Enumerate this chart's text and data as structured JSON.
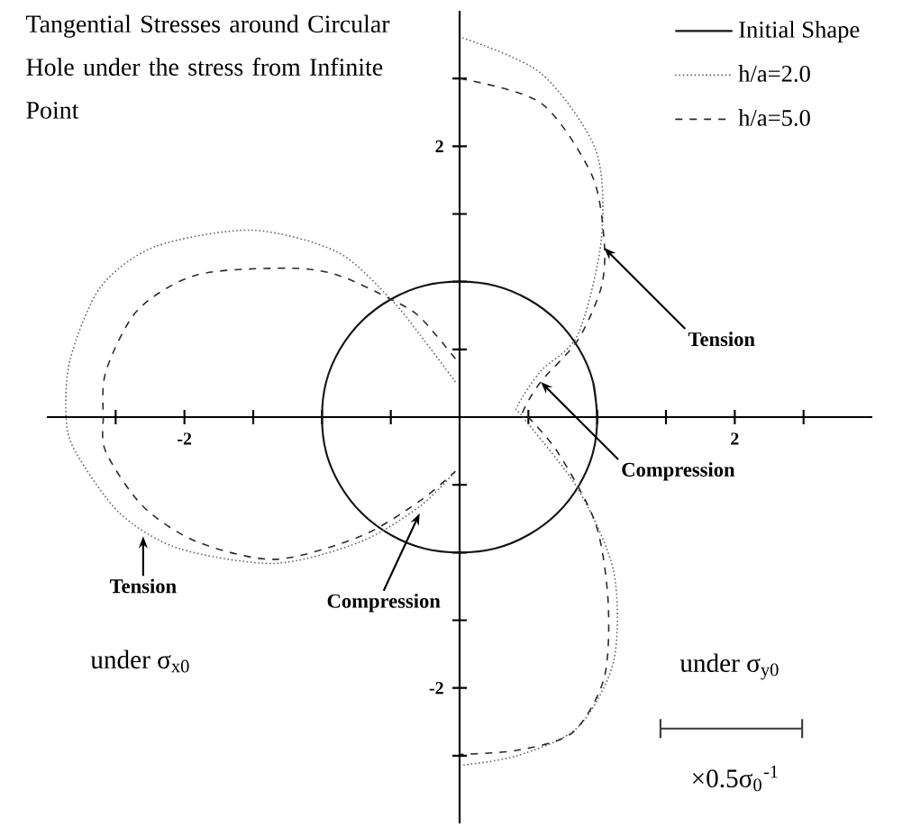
{
  "chart_data": {
    "type": "line",
    "title": "Tangential Stresses around Circular Hole under the stress from Infinite Point",
    "xlim": [
      -3,
      3
    ],
    "ylim": [
      -3,
      3
    ],
    "xticks": [
      {
        "value": -2.5,
        "label": null
      },
      -2,
      {
        "value": -1.5,
        "label": null
      },
      {
        "value": -1,
        "label": null
      },
      {
        "value": -0.5,
        "label": null
      },
      {
        "value": 0.5,
        "label": null
      },
      {
        "value": 1,
        "label": null
      },
      {
        "value": 1.5,
        "label": null
      },
      2,
      {
        "value": 2.5,
        "label": null
      }
    ],
    "yticks": [
      {
        "value": -2.5,
        "label": null
      },
      -2,
      {
        "value": -1.5,
        "label": null
      },
      {
        "value": -1,
        "label": null
      },
      {
        "value": -0.5,
        "label": null
      },
      {
        "value": 0.5,
        "label": null
      },
      {
        "value": 1,
        "label": null
      },
      {
        "value": 1.5,
        "label": null
      },
      2,
      {
        "value": 2.5,
        "label": null
      }
    ],
    "legend": "top right",
    "marker": "none",
    "series": [
      {
        "name": "Initial Shape",
        "color": "#141414",
        "line_style": "solid",
        "x": [
          1,
          0.97,
          0.87,
          0.71,
          0.5,
          0.26,
          0,
          -0.26,
          -0.5,
          -0.71,
          -0.87,
          -0.97,
          -1,
          -0.97,
          -0.87,
          -0.71,
          -0.5,
          -0.26,
          0,
          0.26,
          0.5,
          0.71,
          0.87,
          0.97,
          1,
          0.97
        ],
        "values": [
          0,
          0.26,
          0.5,
          0.71,
          0.87,
          0.97,
          1,
          0.97,
          0.87,
          0.71,
          0.5,
          0.26,
          0,
          -0.26,
          -0.5,
          -0.71,
          -0.87,
          -0.97,
          -1,
          -0.97,
          -0.87,
          -0.71,
          -0.5,
          -0.26,
          0,
          0.26
        ]
      },
      {
        "name": "h/a=2.0",
        "color": "#666666",
        "line_style": "dotted",
        "x": [
          0.02,
          0.59,
          0.99,
          1.03,
          0.86,
          0.59,
          0.42,
          0.46,
          0.86,
          1.12,
          1.12,
          0.86,
          0.42,
          0.02,
          null,
          -0.03,
          -0.29,
          -0.5,
          -0.89,
          -1.51,
          -2.21,
          -2.61,
          -2.83,
          -2.86,
          -2.79,
          -2.47,
          -2.04,
          -1.34,
          -0.72,
          -0.29,
          -0.03
        ],
        "values": [
          2.8,
          2.54,
          1.97,
          1.31,
          0.61,
          0.34,
          0.08,
          0,
          -0.53,
          -1.14,
          -1.8,
          -2.29,
          -2.5,
          -2.57,
          null,
          0.26,
          0.61,
          0.87,
          1.22,
          1.38,
          1.26,
          0.96,
          0.43,
          0,
          -0.26,
          -0.71,
          -0.97,
          -1.08,
          -0.92,
          -0.66,
          -0.4
        ]
      },
      {
        "name": "h/a=5.0",
        "color": "#2b2b2b",
        "line_style": "dashed",
        "x": [
          0,
          0.59,
          0.96,
          1.05,
          1.03,
          0.86,
          0.59,
          0.46,
          0.5,
          0.72,
          0.99,
          1.08,
          1.05,
          0.82,
          0.42,
          0,
          null,
          -0.03,
          -0.29,
          -0.5,
          -0.89,
          -1.25,
          -1.91,
          -2.34,
          -2.57,
          -2.59,
          -2.57,
          -2.3,
          -1.91,
          -1.34,
          -0.72,
          -0.29,
          -0.03
        ],
        "values": [
          2.5,
          2.32,
          1.79,
          1.31,
          0.96,
          0.57,
          0.26,
          0.04,
          0,
          -0.27,
          -0.79,
          -1.37,
          -1.93,
          -2.33,
          -2.46,
          -2.49,
          null,
          0.43,
          0.74,
          0.87,
          1.05,
          1.1,
          1.05,
          0.79,
          0.34,
          0,
          -0.26,
          -0.66,
          -0.92,
          -1.05,
          -0.88,
          -0.62,
          -0.4
        ]
      },
      {
        "color": "#3a3a3a",
        "line_style": "solid",
        "x": [
          1.46,
          2.49
        ],
        "values": [
          -2.3,
          -2.3
        ],
        "errors": [
          0.07,
          0.07
        ]
      }
    ],
    "annotations": [
      {
        "text": "Tension",
        "x": 1.05,
        "y": 1.25
      },
      {
        "text": "Compression",
        "x": 0.59,
        "y": 0.26
      },
      {
        "text": "Tension",
        "x": -2.3,
        "y": -0.88
      },
      {
        "text": "Compression",
        "x": -0.29,
        "y": -0.71
      },
      "under σ$_{x0}$",
      "under σ$_{y0}$",
      "×0.5σ$_{0}$$^{-1}$"
    ]
  }
}
